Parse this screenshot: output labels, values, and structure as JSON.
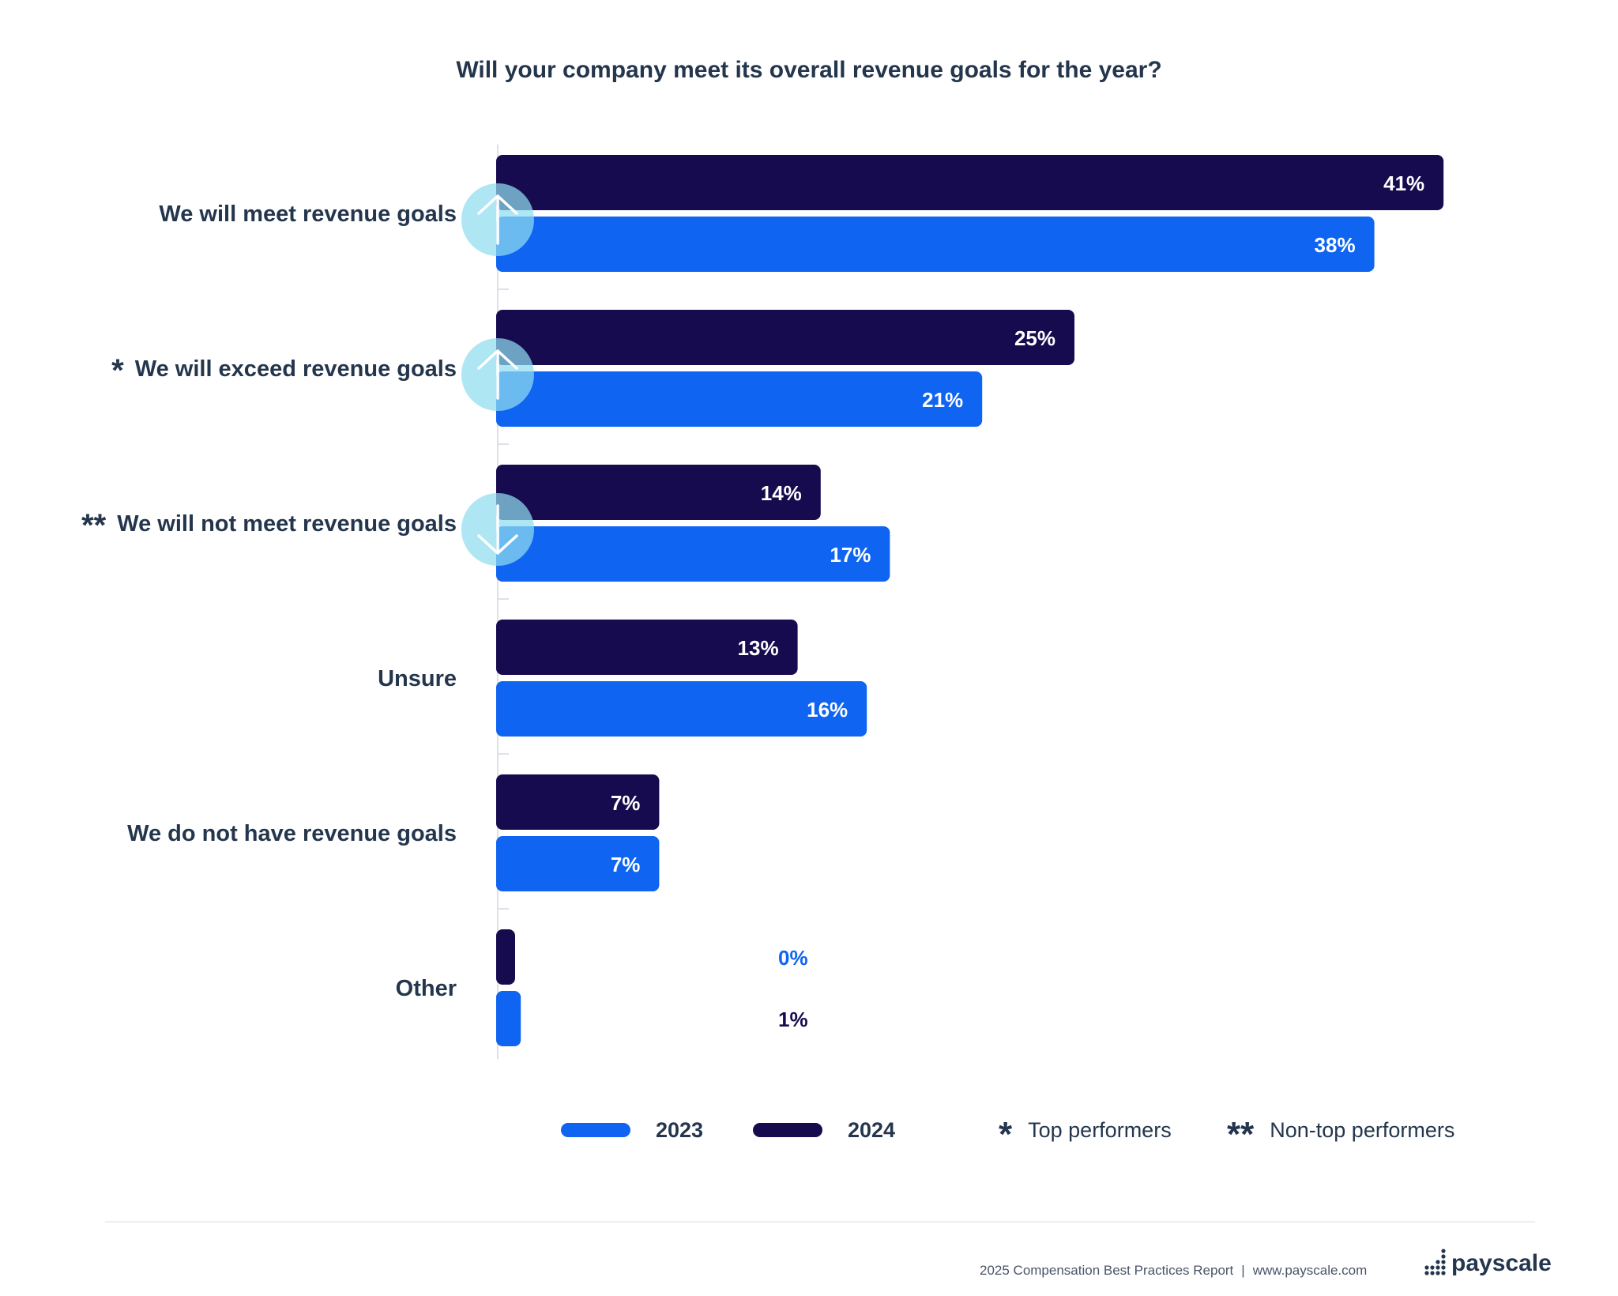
{
  "chart_data": {
    "type": "bar",
    "orientation": "horizontal",
    "title": "Will your company meet its overall revenue goals for the year?",
    "categories": [
      {
        "label": "We will meet revenue goals",
        "mark": "",
        "arrow": "up"
      },
      {
        "label": "We will exceed revenue goals",
        "mark": "*",
        "arrow": "up"
      },
      {
        "label": "We will not meet revenue goals",
        "mark": "**",
        "arrow": "down"
      },
      {
        "label": "Unsure",
        "mark": "",
        "arrow": ""
      },
      {
        "label": "We do not have revenue goals",
        "mark": "",
        "arrow": ""
      },
      {
        "label": "Other",
        "mark": "",
        "arrow": ""
      }
    ],
    "series": [
      {
        "name": "2024",
        "color": "#170b4f",
        "values": [
          41,
          25,
          14,
          13,
          7,
          0
        ],
        "labels": [
          "41%",
          "25%",
          "14%",
          "13%",
          "7%",
          "0%"
        ]
      },
      {
        "name": "2023",
        "color": "#0f64f2",
        "values": [
          38,
          21,
          17,
          16,
          7,
          1
        ],
        "labels": [
          "38%",
          "21%",
          "17%",
          "16%",
          "7%",
          "1%"
        ]
      }
    ],
    "grid": false
  },
  "legend": {
    "items": [
      {
        "label": "2023",
        "color": "#0f64f2"
      },
      {
        "label": "2024",
        "color": "#170b4f"
      }
    ],
    "notes": [
      {
        "mark": "*",
        "label": "Top performers"
      },
      {
        "mark": "**",
        "label": "Non-top performers"
      }
    ]
  },
  "footer": {
    "report": "2025 Compensation Best Practices Report",
    "separator": "|",
    "url": "www.payscale.com",
    "logo": "payscale"
  },
  "colors": {
    "dark": "#170b4f",
    "blue": "#0f64f2",
    "arrow_circle": "#8fdcf0",
    "text": "#24364d"
  }
}
